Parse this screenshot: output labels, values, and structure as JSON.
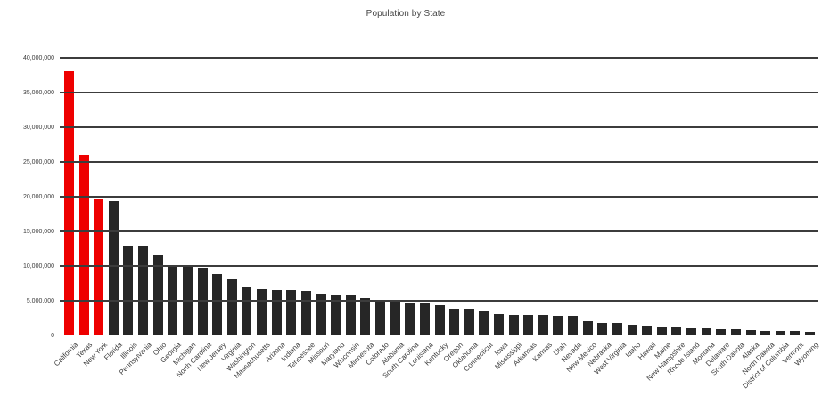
{
  "page": {
    "background": "#ffffff"
  },
  "chart_data": {
    "type": "bar",
    "title": "Population by State",
    "xlabel": "",
    "ylabel": "",
    "legend": "none",
    "grid": "horizontal",
    "ylim": [
      0,
      40000000
    ],
    "ytick_step": 5000000,
    "yticks": [
      0,
      5000000,
      10000000,
      15000000,
      20000000,
      25000000,
      30000000,
      35000000,
      40000000
    ],
    "x_tick_rotation": -45,
    "highlight_count": 3,
    "highlight_color": "#ee0000",
    "bar_color": "#262626",
    "gridline_color": "#3c3c3c",
    "title_color": "#454545",
    "axis_label_color": "#3c3c3c",
    "categories": [
      "California",
      "Texas",
      "New York",
      "Florida",
      "Illinois",
      "Pennsylvania",
      "Ohio",
      "Georgia",
      "Michigan",
      "North Carolina",
      "New Jersey",
      "Virginia",
      "Washington",
      "Massachusetts",
      "Arizona",
      "Indiana",
      "Tennessee",
      "Missouri",
      "Maryland",
      "Wisconsin",
      "Minnesota",
      "Colorado",
      "Alabama",
      "South Carolina",
      "Louisiana",
      "Kentucky",
      "Oregon",
      "Oklahoma",
      "Connecticut",
      "Iowa",
      "Mississippi",
      "Arkansas",
      "Kansas",
      "Utah",
      "Nevada",
      "New Mexico",
      "Nebraska",
      "West Virginia",
      "Idaho",
      "Hawaii",
      "Maine",
      "New Hampshire",
      "Rhode Island",
      "Montana",
      "Delaware",
      "South Dakota",
      "Alaska",
      "North Dakota",
      "District of Columbia",
      "Vermont",
      "Wyoming"
    ],
    "values": [
      38041430,
      26059203,
      19570261,
      19317568,
      12875255,
      12763536,
      11544225,
      9919945,
      9883360,
      9752073,
      8864590,
      8185867,
      6897012,
      6646144,
      6553255,
      6537334,
      6456243,
      6021988,
      5884563,
      5726398,
      5379139,
      5187582,
      4822023,
      4723723,
      4601893,
      4380415,
      3899353,
      3814820,
      3590347,
      3074186,
      2984926,
      2949131,
      2885905,
      2855287,
      2758931,
      2085538,
      1855525,
      1855413,
      1595728,
      1392313,
      1329192,
      1320718,
      1050292,
      1005141,
      917092,
      833354,
      731449,
      699628,
      632323,
      626011,
      576412
    ]
  }
}
